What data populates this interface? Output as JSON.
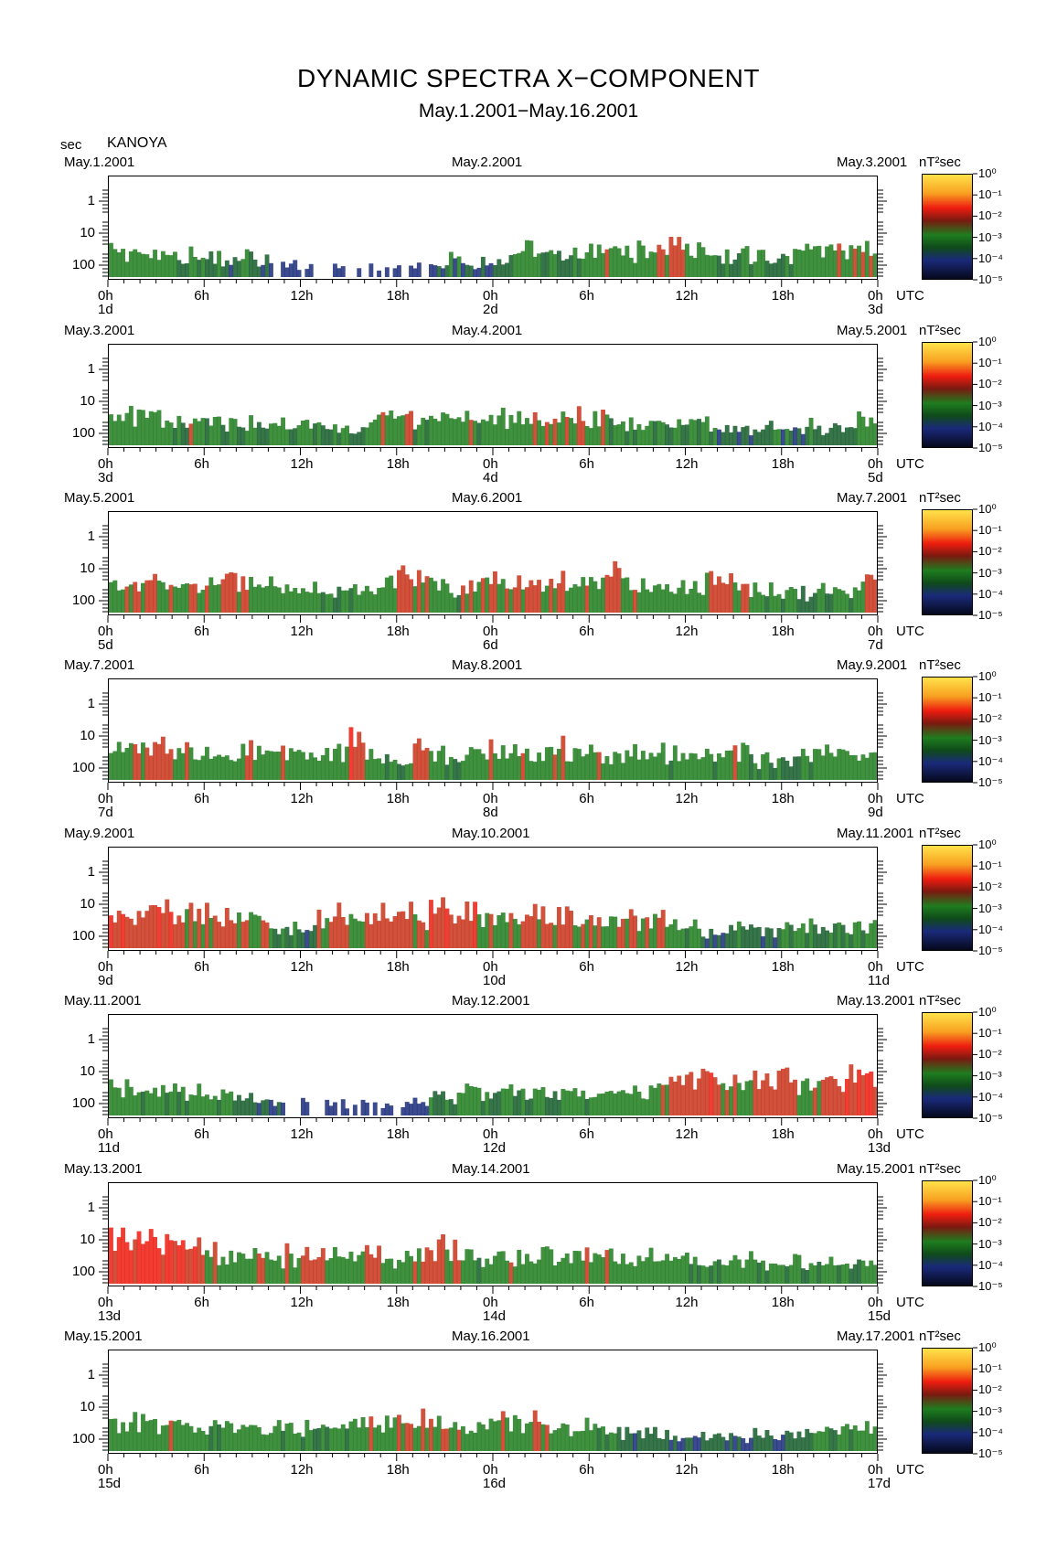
{
  "title": "DYNAMIC SPECTRA X−COMPONENT",
  "subtitle": "May.1.2001−May.16.2001",
  "y_unit": "sec",
  "station": "KANOYA",
  "colorbar_unit": "nT²sec",
  "colorbar_ticks": [
    "10⁰",
    "10⁻¹",
    "10⁻²",
    "10⁻³",
    "10⁻⁴",
    "10⁻⁵"
  ],
  "y_ticks": [
    "1",
    "10",
    "100"
  ],
  "x_ticks": [
    "0h",
    "6h",
    "12h",
    "18h",
    "0h",
    "6h",
    "12h",
    "18h",
    "0h"
  ],
  "utc_label": "UTC",
  "colors": {
    "low": "#000000",
    "blue": "#1a2a7a",
    "green": "#1e7d1e",
    "red": "#ee1c10",
    "yellow": "#ffe24a"
  },
  "chart_data": [
    {
      "type": "heatmap",
      "date_start": "May.1.2001",
      "date_mid": "May.2.2001",
      "date_end": "May.3.2001",
      "day_start": "1d",
      "day_mid": "2d",
      "day_end": "3d",
      "activity": [
        0.5,
        0.5,
        0.4,
        0.5,
        0.4,
        0.5,
        0.4,
        0.3,
        0.4,
        0.3,
        0.2,
        0.2,
        0.2,
        0.2,
        0.2,
        0.2,
        0.2,
        0.2,
        0.2,
        0.2,
        0.3,
        0.35,
        0.3,
        0.3,
        0.3,
        0.4,
        0.5,
        0.4,
        0.4,
        0.4,
        0.5,
        0.55,
        0.5,
        0.55,
        0.6,
        0.7,
        0.55,
        0.45,
        0.4,
        0.4,
        0.4,
        0.4,
        0.45,
        0.5,
        0.55,
        0.55,
        0.6,
        0.6
      ]
    },
    {
      "type": "heatmap",
      "date_start": "May.3.2001",
      "date_mid": "May.4.2001",
      "date_end": "May.5.2001",
      "day_start": "3d",
      "day_mid": "4d",
      "day_end": "5d",
      "activity": [
        0.5,
        0.6,
        0.5,
        0.5,
        0.4,
        0.6,
        0.5,
        0.4,
        0.4,
        0.4,
        0.5,
        0.4,
        0.4,
        0.4,
        0.4,
        0.4,
        0.5,
        0.6,
        0.6,
        0.45,
        0.5,
        0.5,
        0.55,
        0.5,
        0.55,
        0.55,
        0.6,
        0.6,
        0.6,
        0.6,
        0.55,
        0.5,
        0.45,
        0.45,
        0.4,
        0.4,
        0.4,
        0.4,
        0.35,
        0.35,
        0.35,
        0.4,
        0.35,
        0.35,
        0.35,
        0.35,
        0.45,
        0.5
      ]
    },
    {
      "type": "heatmap",
      "date_start": "May.5.2001",
      "date_mid": "May.6.2001",
      "date_end": "May.7.2001",
      "day_start": "5d",
      "day_mid": "6d",
      "day_end": "7d",
      "activity": [
        0.55,
        0.6,
        0.6,
        0.6,
        0.55,
        0.6,
        0.55,
        0.6,
        0.6,
        0.55,
        0.55,
        0.5,
        0.5,
        0.4,
        0.4,
        0.45,
        0.5,
        0.55,
        0.7,
        0.6,
        0.5,
        0.45,
        0.6,
        0.6,
        0.6,
        0.65,
        0.65,
        0.65,
        0.65,
        0.6,
        0.65,
        0.7,
        0.6,
        0.55,
        0.5,
        0.5,
        0.55,
        0.6,
        0.7,
        0.6,
        0.5,
        0.45,
        0.45,
        0.4,
        0.45,
        0.45,
        0.5,
        0.6
      ]
    },
    {
      "type": "heatmap",
      "date_start": "May.7.2001",
      "date_mid": "May.8.2001",
      "date_end": "May.9.2001",
      "day_start": "7d",
      "day_mid": "8d",
      "day_end": "9d",
      "activity": [
        0.55,
        0.6,
        0.6,
        0.65,
        0.6,
        0.55,
        0.55,
        0.55,
        0.6,
        0.55,
        0.55,
        0.5,
        0.5,
        0.5,
        0.55,
        0.75,
        0.55,
        0.45,
        0.4,
        0.7,
        0.5,
        0.45,
        0.55,
        0.55,
        0.55,
        0.6,
        0.6,
        0.6,
        0.6,
        0.55,
        0.55,
        0.5,
        0.55,
        0.5,
        0.5,
        0.5,
        0.5,
        0.5,
        0.5,
        0.6,
        0.4,
        0.35,
        0.35,
        0.45,
        0.5,
        0.5,
        0.55,
        0.55
      ]
    },
    {
      "type": "heatmap",
      "date_start": "May.9.2001",
      "date_mid": "May.10.2001",
      "date_end": "May.11.2001",
      "day_start": "9d",
      "day_mid": "10d",
      "day_end": "11d",
      "activity": [
        0.8,
        0.7,
        0.7,
        0.75,
        0.7,
        0.65,
        0.65,
        0.7,
        0.65,
        0.6,
        0.5,
        0.4,
        0.35,
        0.6,
        0.7,
        0.5,
        0.65,
        0.75,
        0.7,
        0.55,
        0.75,
        0.8,
        0.75,
        0.55,
        0.5,
        0.65,
        0.7,
        0.65,
        0.7,
        0.6,
        0.6,
        0.55,
        0.6,
        0.55,
        0.6,
        0.45,
        0.4,
        0.35,
        0.35,
        0.35,
        0.35,
        0.35,
        0.45,
        0.5,
        0.4,
        0.45,
        0.45,
        0.45
      ]
    },
    {
      "type": "heatmap",
      "date_start": "May.11.2001",
      "date_mid": "May.12.2001",
      "date_end": "May.13.2001",
      "day_start": "11d",
      "day_mid": "12d",
      "day_end": "13d",
      "activity": [
        0.5,
        0.5,
        0.45,
        0.45,
        0.45,
        0.45,
        0.45,
        0.4,
        0.35,
        0.3,
        0.25,
        0.2,
        0.2,
        0.2,
        0.2,
        0.2,
        0.2,
        0.2,
        0.2,
        0.25,
        0.35,
        0.4,
        0.45,
        0.45,
        0.45,
        0.45,
        0.45,
        0.45,
        0.45,
        0.45,
        0.5,
        0.5,
        0.5,
        0.5,
        0.55,
        0.65,
        0.75,
        0.8,
        0.65,
        0.6,
        0.65,
        0.7,
        0.7,
        0.6,
        0.65,
        0.75,
        0.8,
        0.85
      ]
    },
    {
      "type": "heatmap",
      "date_start": "May.13.2001",
      "date_mid": "May.14.2001",
      "date_end": "May.15.2001",
      "day_start": "13d",
      "day_mid": "14d",
      "day_end": "15d",
      "activity": [
        0.9,
        0.9,
        0.8,
        0.85,
        0.8,
        0.8,
        0.6,
        0.55,
        0.5,
        0.55,
        0.5,
        0.55,
        0.7,
        0.6,
        0.55,
        0.55,
        0.7,
        0.5,
        0.55,
        0.7,
        0.7,
        0.6,
        0.55,
        0.5,
        0.5,
        0.55,
        0.55,
        0.55,
        0.55,
        0.55,
        0.55,
        0.55,
        0.5,
        0.5,
        0.5,
        0.5,
        0.45,
        0.45,
        0.45,
        0.45,
        0.45,
        0.45,
        0.5,
        0.45,
        0.45,
        0.45,
        0.45,
        0.5
      ]
    },
    {
      "type": "heatmap",
      "date_start": "May.15.2001",
      "date_mid": "May.16.2001",
      "date_end": "May.17.2001",
      "day_start": "15d",
      "day_mid": "16d",
      "day_end": "17d",
      "activity": [
        0.55,
        0.55,
        0.55,
        0.55,
        0.55,
        0.5,
        0.5,
        0.45,
        0.45,
        0.5,
        0.5,
        0.5,
        0.45,
        0.45,
        0.45,
        0.55,
        0.6,
        0.55,
        0.65,
        0.6,
        0.6,
        0.55,
        0.55,
        0.5,
        0.55,
        0.55,
        0.55,
        0.55,
        0.5,
        0.5,
        0.45,
        0.45,
        0.35,
        0.3,
        0.3,
        0.3,
        0.3,
        0.3,
        0.3,
        0.3,
        0.3,
        0.3,
        0.35,
        0.4,
        0.45,
        0.45,
        0.45,
        0.5
      ]
    }
  ]
}
